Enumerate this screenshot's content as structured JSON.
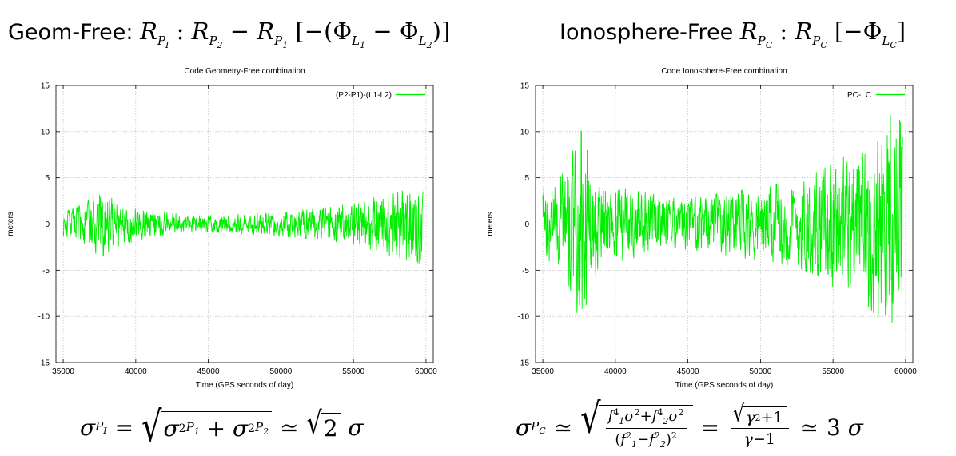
{
  "header": {
    "left_label": "Geom-Free:",
    "right_label": "Ionosphere-Free"
  },
  "colors": {
    "series": "#00ee00",
    "grid": "#b0b0b0",
    "axis": "#000000"
  },
  "chart_data": [
    {
      "type": "line",
      "title": "Code Geometry-Free combination",
      "xlabel": "Time (GPS seconds of day)",
      "ylabel": "meters",
      "xlim": [
        34500,
        60500
      ],
      "ylim": [
        -15,
        15
      ],
      "xticks": [
        35000,
        40000,
        45000,
        50000,
        55000,
        60000
      ],
      "yticks": [
        -15,
        -10,
        -5,
        0,
        5,
        10,
        15
      ],
      "grid": true,
      "legend_position": "top-right",
      "series": [
        {
          "name": "(P2-P1)-(L1-L2)",
          "envelope": [
            [
              35000,
              1.0
            ],
            [
              36000,
              1.5
            ],
            [
              37000,
              2.2
            ],
            [
              37500,
              3.0
            ],
            [
              38000,
              2.5
            ],
            [
              39000,
              1.8
            ],
            [
              40000,
              1.5
            ],
            [
              41000,
              1.2
            ],
            [
              42000,
              1.0
            ],
            [
              43000,
              0.9
            ],
            [
              44000,
              0.8
            ],
            [
              45000,
              0.7
            ],
            [
              46000,
              0.8
            ],
            [
              47000,
              0.9
            ],
            [
              48000,
              0.9
            ],
            [
              49000,
              1.0
            ],
            [
              50000,
              1.1
            ],
            [
              51000,
              1.2
            ],
            [
              52000,
              1.3
            ],
            [
              53000,
              1.4
            ],
            [
              54000,
              1.6
            ],
            [
              55000,
              1.8
            ],
            [
              56000,
              2.2
            ],
            [
              57000,
              2.5
            ],
            [
              58000,
              3.0
            ],
            [
              59000,
              3.2
            ],
            [
              59800,
              3.5
            ]
          ],
          "x_end": 59800
        }
      ]
    },
    {
      "type": "line",
      "title": "Code Ionosphere-Free combination",
      "xlabel": "Time (GPS seconds of day)",
      "ylabel": "meters",
      "xlim": [
        34500,
        60500
      ],
      "ylim": [
        -15,
        15
      ],
      "xticks": [
        35000,
        40000,
        45000,
        50000,
        55000,
        60000
      ],
      "yticks": [
        -15,
        -10,
        -5,
        0,
        5,
        10,
        15
      ],
      "grid": true,
      "legend_position": "top-right",
      "series": [
        {
          "name": "PC-LC",
          "envelope": [
            [
              35000,
              3.0
            ],
            [
              36000,
              3.5
            ],
            [
              37000,
              6.0
            ],
            [
              37500,
              8.5
            ],
            [
              38000,
              7.0
            ],
            [
              39000,
              4.0
            ],
            [
              40000,
              3.5
            ],
            [
              41000,
              3.0
            ],
            [
              42000,
              2.8
            ],
            [
              43000,
              2.5
            ],
            [
              44000,
              2.3
            ],
            [
              45000,
              2.2
            ],
            [
              46000,
              2.4
            ],
            [
              47000,
              2.6
            ],
            [
              48000,
              2.8
            ],
            [
              49000,
              3.0
            ],
            [
              50000,
              3.2
            ],
            [
              51000,
              3.4
            ],
            [
              52000,
              3.6
            ],
            [
              53000,
              4.0
            ],
            [
              54000,
              4.5
            ],
            [
              55000,
              5.5
            ],
            [
              56000,
              6.0
            ],
            [
              57000,
              6.5
            ],
            [
              58000,
              8.0
            ],
            [
              59000,
              9.5
            ],
            [
              59800,
              10.0
            ]
          ],
          "x_end": 59800
        }
      ]
    }
  ]
}
